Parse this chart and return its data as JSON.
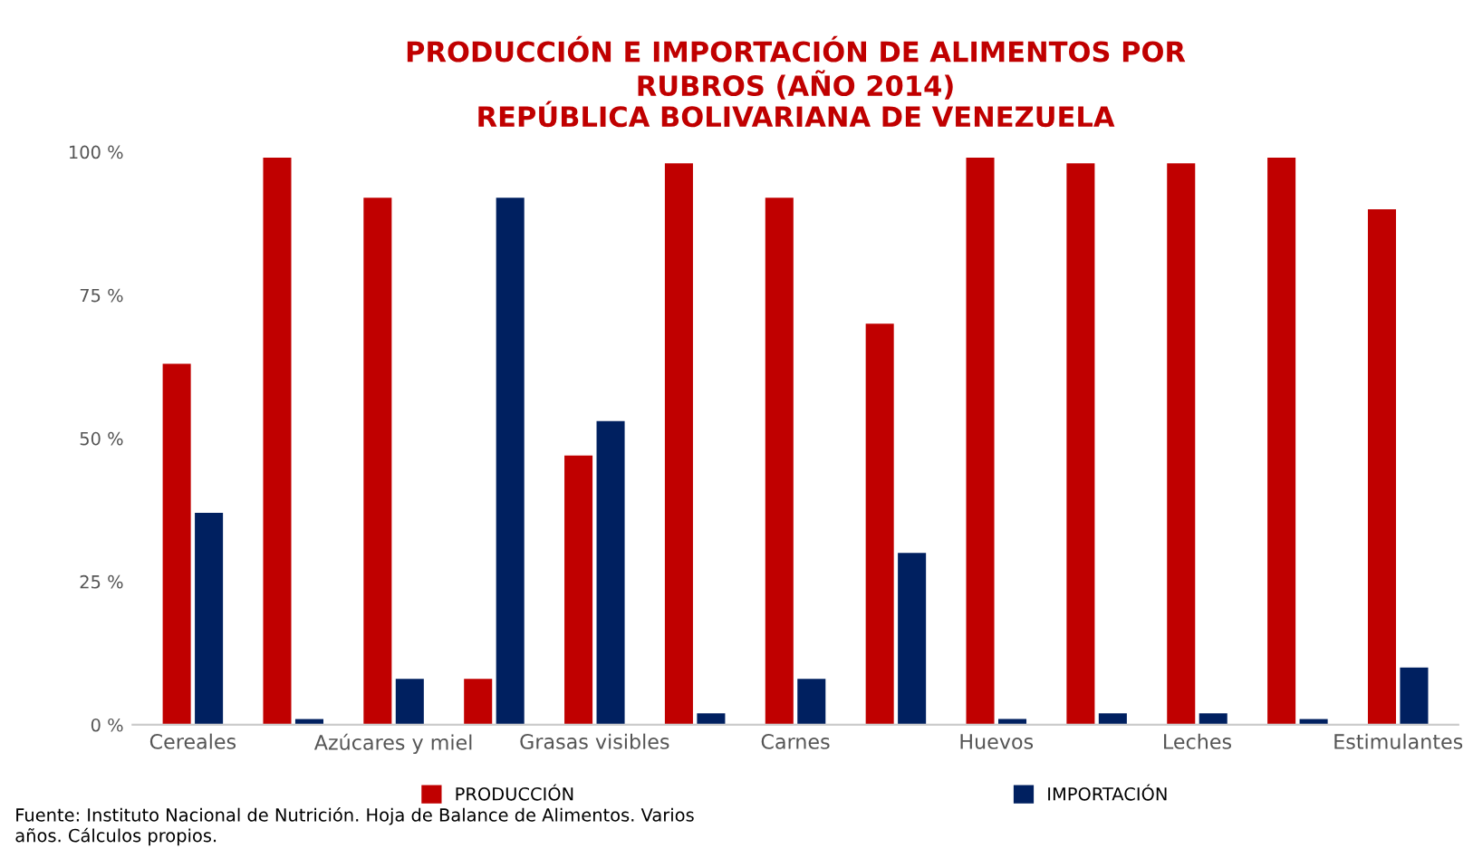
{
  "chart_data": {
    "type": "bar",
    "title": "PRODUCCIÓN E IMPORTACIÓN DE ALIMENTOS POR\nRUBROS (AÑO 2014)\nREPÚBLICA BOLIVARIANA DE VENEZUELA",
    "categories": [
      "Cereales",
      null,
      "Azúcares y miel",
      null,
      "Grasas visibles",
      null,
      "Carnes",
      null,
      "Huevos",
      null,
      "Leches",
      null,
      "Estimulantes"
    ],
    "series": [
      {
        "name": "PRODUCCIÓN",
        "color": "#c00000",
        "values": [
          63,
          99,
          92,
          8,
          47,
          98,
          92,
          70,
          99,
          98,
          98,
          99,
          90
        ]
      },
      {
        "name": "IMPORTACIÓN",
        "color": "#002060",
        "values": [
          37,
          1,
          8,
          92,
          53,
          2,
          8,
          30,
          1,
          2,
          2,
          1,
          10
        ]
      }
    ],
    "ylim": [
      0,
      100
    ],
    "yticks": [
      {
        "value": 0,
        "label": "0 %"
      },
      {
        "value": 25,
        "label": "25 %"
      },
      {
        "value": 50,
        "label": "50 %"
      },
      {
        "value": 75,
        "label": "75 %"
      },
      {
        "value": 100,
        "label": "100 %"
      }
    ],
    "legend": "bottom",
    "annotations": [
      "Fuente: Instituto Nacional de Nutrición. Hoja de Balance de Alimentos. Varios\naños. Cálculos propios."
    ]
  }
}
